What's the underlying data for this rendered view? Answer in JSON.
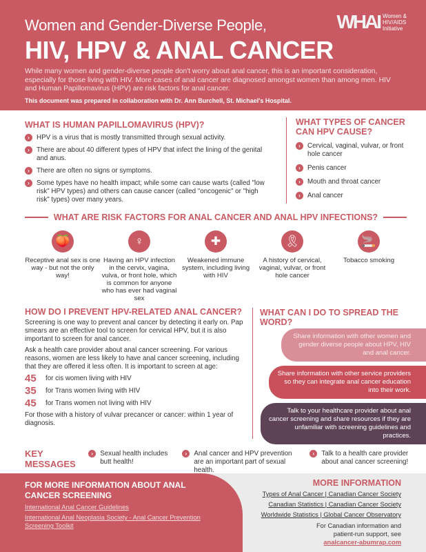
{
  "header": {
    "subtitle": "Women and Gender-Diverse People,",
    "title": "HIV, HPV & ANAL CANCER",
    "intro": "While many women and gender-diverse people don't worry about anal cancer, this is an important consideration, especially for those living with HIV. More cases of anal cancer are diagnosed amongst women than among men. HIV and Human Papillomavirus (HPV) are risk factors for anal cancer.",
    "collab": "This document was prepared in collaboration with Dr. Ann Burchell, St. Michael's Hospital.",
    "logo_mark": "WHAI",
    "logo_text": [
      "Women &",
      "HIV/AIDS",
      "Initiative"
    ]
  },
  "hpv": {
    "title": "WHAT IS HUMAN PAPILLOMAVIRUS (HPV)?",
    "items": [
      "HPV is a virus that is mostly transmitted through sexual activity.",
      "There are about 40 different types of HPV that infect the lining of the genital and anus.",
      "There are often no signs or symptoms.",
      "Some types have no health impact; while some can cause warts (called \"low risk\" HPV types) and others can cause cancer (called \"oncogenic\" or \"high risk\" types) over many years."
    ]
  },
  "types": {
    "title": "WHAT TYPES OF CANCER CAN HPV CAUSE?",
    "items": [
      "Cervical, vaginal, vulvar, or front hole cancer",
      "Penis cancer",
      "Mouth and throat cancer",
      "Anal cancer"
    ]
  },
  "risk": {
    "title": "WHAT ARE RISK FACTORS FOR ANAL CANCER AND ANAL HPV INFECTIONS?",
    "items": [
      {
        "icon": "peach-icon",
        "glyph": "🍑",
        "text": "Receptive anal sex is one way - but not the only way!"
      },
      {
        "icon": "cervix-icon",
        "glyph": "♀",
        "text": "Having an HPV infection in the cervix, vagina, vulva, or front hole, which is common for anyone who has ever had vaginal sex"
      },
      {
        "icon": "immune-shield-icon",
        "glyph": "✚",
        "text": "Weakened immune system, including living with HIV"
      },
      {
        "icon": "ribbon-icon",
        "glyph": "🎗",
        "text": "A history of cervical, vaginal, vulvar, or front hole cancer"
      },
      {
        "icon": "cigarette-icon",
        "glyph": "🚬",
        "text": "Tobacco smoking"
      }
    ]
  },
  "prevent": {
    "title": "HOW DO I PREVENT HPV-RELATED ANAL CANCER?",
    "p1": "Screening is one way to prevent anal cancer by detecting it early on. Pap smears are an effective tool to screen for cervical HPV, but it is also important to screen for anal cancer.",
    "p2": "Ask a health care provider about anal cancer screening. For various reasons, women are less likely to have anal cancer screening, including that they are offered it less often. It is important to screen at age:",
    "ages": [
      {
        "age": "45",
        "text": "for cis women living with HIV"
      },
      {
        "age": "35",
        "text": "for Trans women living with HIV"
      },
      {
        "age": "45",
        "text": "for Trans women not living with HIV"
      }
    ],
    "p3": "For those with a history of vulvar precancer or cancer: within 1 year of diagnosis."
  },
  "spread": {
    "title": "WHAT CAN I DO TO SPREAD THE WORD?",
    "items": [
      "Share information with other women and gender diverse people about HPV, HIV and anal cancer.",
      "Share information with other service providers so they can integrate anal cancer education into their work.",
      "Talk to your healthcare provider about anal cancer screening and share resources if they are unfamiliar with screening guidelines and practices."
    ]
  },
  "key": {
    "title_1": "KEY",
    "title_2": "MESSAGES",
    "items": [
      "Sexual health includes butt health!",
      "Anal cancer and HPV prevention are an important part of sexual health.",
      "Talk to a health care provider about anal cancer screening!"
    ]
  },
  "screening": {
    "title": "FOR MORE INFORMATION ABOUT ANAL CANCER SCREENING",
    "links": [
      "International Anal Cancer Guidelines",
      "International Anal Neoplasia Society - Anal Cancer Prevention Screening Toolkit"
    ]
  },
  "more": {
    "title": "MORE INFORMATION",
    "links": [
      "Types of Anal Cancer | Canadian Cancer Society",
      "Canadian Statistics | Canadian Cancer Society",
      "Worldwide Statistics | Global Cancer Observatory"
    ],
    "note": "For Canadian information and patient-run support, see ",
    "site": "analcancer-abumrap.com"
  },
  "colors": {
    "accent": "#c95a63",
    "pill_light": "#d98f97",
    "pill_mid": "#c94f5a",
    "pill_dark": "#5e4356",
    "footer_gray": "#ebebeb"
  }
}
